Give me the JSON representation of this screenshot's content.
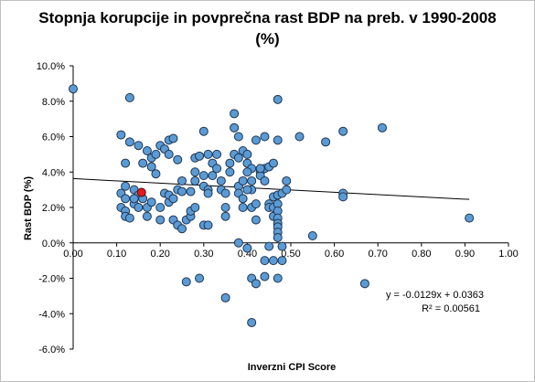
{
  "chart_data": {
    "type": "scatter",
    "title_line1": "Stopnja korupcije in povprečna rast BDP na preb. v 1990-2008",
    "title_line2": "(%)",
    "xlabel": "Inverzni CPI Score",
    "ylabel": "Rast BDP (%)",
    "xlim": [
      0,
      1
    ],
    "ylim": [
      -6,
      10
    ],
    "x_ticks": [
      "0.00",
      "0.10",
      "0.20",
      "0.30",
      "0.40",
      "0.50",
      "0.60",
      "0.70",
      "0.80",
      "0.90",
      "1.00"
    ],
    "y_ticks": [
      "-6.0%",
      "-4.0%",
      "-2.0%",
      "0.0%",
      "2.0%",
      "4.0%",
      "6.0%",
      "8.0%",
      "10.0%"
    ],
    "grid": false,
    "point_color": "#5b9bd5",
    "highlight_color": "#e41a1c",
    "trendline": {
      "slope": -0.0129,
      "intercept": 0.0363,
      "x_range": [
        0,
        0.91
      ]
    },
    "equation": "y = -0.0129x + 0.0363",
    "r_squared": "R² = 0.00561",
    "points": [
      [
        0.0,
        8.7
      ],
      [
        0.11,
        6.1
      ],
      [
        0.13,
        5.7
      ],
      [
        0.13,
        8.2
      ],
      [
        0.15,
        5.5
      ],
      [
        0.17,
        5.2
      ],
      [
        0.18,
        4.8
      ],
      [
        0.19,
        5.0
      ],
      [
        0.2,
        5.5
      ],
      [
        0.21,
        5.3
      ],
      [
        0.22,
        5.8
      ],
      [
        0.23,
        5.9
      ],
      [
        0.22,
        5.0
      ],
      [
        0.24,
        4.7
      ],
      [
        0.18,
        4.3
      ],
      [
        0.16,
        4.5
      ],
      [
        0.12,
        4.5
      ],
      [
        0.19,
        3.9
      ],
      [
        0.14,
        3.0
      ],
      [
        0.12,
        3.2
      ],
      [
        0.11,
        2.8
      ],
      [
        0.12,
        2.5
      ],
      [
        0.11,
        2.0
      ],
      [
        0.12,
        1.8
      ],
      [
        0.12,
        1.5
      ],
      [
        0.13,
        1.4
      ],
      [
        0.14,
        2.2
      ],
      [
        0.15,
        2.7
      ],
      [
        0.16,
        2.5
      ],
      [
        0.14,
        2.5
      ],
      [
        0.15,
        2.0
      ],
      [
        0.17,
        2.0
      ],
      [
        0.17,
        1.5
      ],
      [
        0.18,
        2.3
      ],
      [
        0.2,
        2.0
      ],
      [
        0.2,
        1.3
      ],
      [
        0.21,
        2.8
      ],
      [
        0.22,
        2.3
      ],
      [
        0.22,
        2.7
      ],
      [
        0.23,
        2.5
      ],
      [
        0.23,
        1.3
      ],
      [
        0.24,
        3.0
      ],
      [
        0.25,
        3.5
      ],
      [
        0.25,
        2.9
      ],
      [
        0.24,
        1.0
      ],
      [
        0.25,
        0.8
      ],
      [
        0.26,
        1.3
      ],
      [
        0.27,
        1.5
      ],
      [
        0.27,
        1.8
      ],
      [
        0.28,
        2.0
      ],
      [
        0.27,
        2.9
      ],
      [
        0.28,
        3.5
      ],
      [
        0.28,
        4.0
      ],
      [
        0.28,
        4.8
      ],
      [
        0.29,
        4.9
      ],
      [
        0.3,
        3.8
      ],
      [
        0.3,
        3.2
      ],
      [
        0.31,
        3.0
      ],
      [
        0.31,
        2.8
      ],
      [
        0.3,
        1.0
      ],
      [
        0.31,
        1.0
      ],
      [
        0.3,
        6.3
      ],
      [
        0.31,
        5.0
      ],
      [
        0.32,
        4.5
      ],
      [
        0.33,
        5.0
      ],
      [
        0.33,
        4.2
      ],
      [
        0.32,
        3.8
      ],
      [
        0.34,
        3.5
      ],
      [
        0.34,
        3.0
      ],
      [
        0.35,
        2.8
      ],
      [
        0.35,
        2.0
      ],
      [
        0.35,
        1.5
      ],
      [
        0.36,
        4.0
      ],
      [
        0.36,
        4.5
      ],
      [
        0.37,
        5.0
      ],
      [
        0.37,
        6.5
      ],
      [
        0.37,
        7.3
      ],
      [
        0.38,
        6.0
      ],
      [
        0.38,
        4.8
      ],
      [
        0.38,
        3.2
      ],
      [
        0.38,
        2.8
      ],
      [
        0.39,
        2.0
      ],
      [
        0.39,
        5.2
      ],
      [
        0.4,
        5.0
      ],
      [
        0.4,
        4.5
      ],
      [
        0.41,
        3.5
      ],
      [
        0.41,
        3.0
      ],
      [
        0.41,
        2.0
      ],
      [
        0.42,
        2.2
      ],
      [
        0.42,
        1.3
      ],
      [
        0.43,
        4.0
      ],
      [
        0.43,
        3.8
      ],
      [
        0.44,
        3.5
      ],
      [
        0.44,
        4.2
      ],
      [
        0.45,
        4.3
      ],
      [
        0.45,
        2.2
      ],
      [
        0.45,
        2.0
      ],
      [
        0.46,
        2.6
      ],
      [
        0.46,
        2.0
      ],
      [
        0.46,
        1.5
      ],
      [
        0.46,
        4.5
      ],
      [
        0.47,
        2.7
      ],
      [
        0.47,
        2.2
      ],
      [
        0.47,
        1.8
      ],
      [
        0.47,
        1.4
      ],
      [
        0.47,
        1.1
      ],
      [
        0.47,
        0.9
      ],
      [
        0.47,
        0.6
      ],
      [
        0.47,
        0.3
      ],
      [
        0.48,
        2.8
      ],
      [
        0.49,
        3.5
      ],
      [
        0.49,
        3.0
      ],
      [
        0.47,
        5.8
      ],
      [
        0.47,
        8.1
      ],
      [
        0.42,
        5.8
      ],
      [
        0.44,
        6.0
      ],
      [
        0.43,
        4.2
      ],
      [
        0.41,
        4.2
      ],
      [
        0.4,
        4.0
      ],
      [
        0.4,
        3.0
      ],
      [
        0.39,
        3.5
      ],
      [
        0.39,
        2.5
      ],
      [
        0.38,
        0.0
      ],
      [
        0.4,
        -0.3
      ],
      [
        0.44,
        -1.0
      ],
      [
        0.44,
        -1.9
      ],
      [
        0.45,
        -0.2
      ],
      [
        0.46,
        -1.0
      ],
      [
        0.47,
        -2.0
      ],
      [
        0.48,
        -0.2
      ],
      [
        0.48,
        -1.0
      ],
      [
        0.41,
        -2.0
      ],
      [
        0.42,
        -2.3
      ],
      [
        0.41,
        -4.5
      ],
      [
        0.35,
        -3.1
      ],
      [
        0.29,
        -2.0
      ],
      [
        0.26,
        -2.2
      ],
      [
        0.52,
        6.0
      ],
      [
        0.55,
        0.4
      ],
      [
        0.58,
        5.7
      ],
      [
        0.62,
        6.3
      ],
      [
        0.62,
        2.8
      ],
      [
        0.62,
        2.6
      ],
      [
        0.67,
        -2.3
      ],
      [
        0.71,
        6.5
      ],
      [
        0.91,
        1.4
      ]
    ],
    "highlight_point": [
      0.157,
      2.85
    ]
  }
}
